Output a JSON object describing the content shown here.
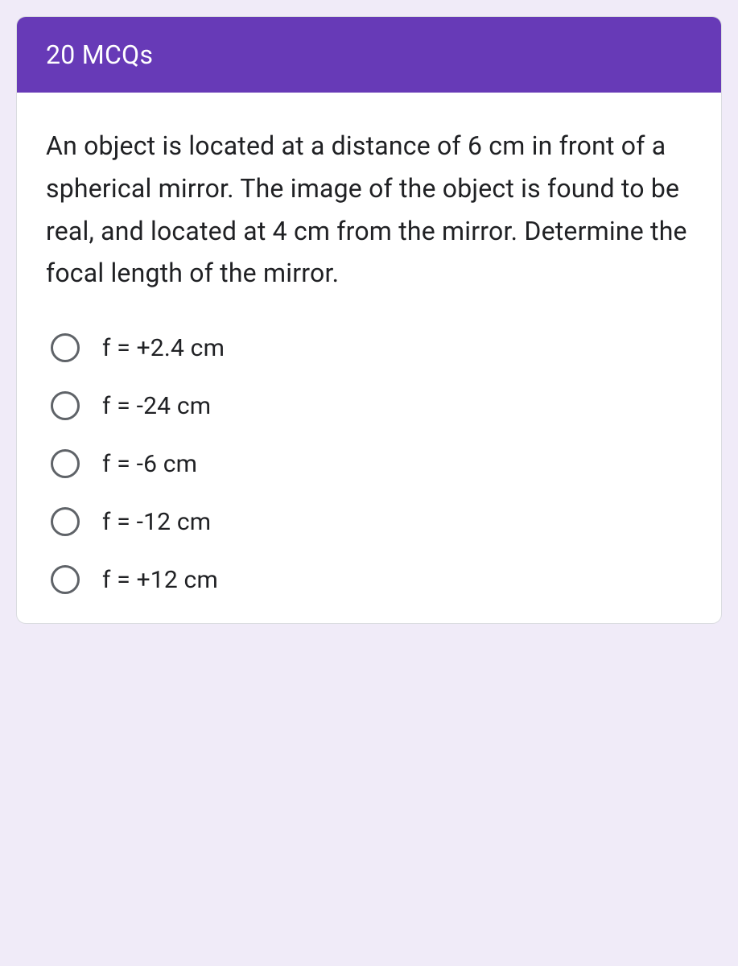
{
  "header": {
    "title": "20 MCQs"
  },
  "question": {
    "text": "An object is located at a distance of 6 cm in front of a spherical mirror. The image of the object is found to be real, and located at 4 cm from the mirror. Determine the focal length of the mirror."
  },
  "options": [
    {
      "label": "f = +2.4 cm"
    },
    {
      "label": "f = -24 cm"
    },
    {
      "label": "f = -6 cm"
    },
    {
      "label": "f = -12 cm"
    },
    {
      "label": "f = +12 cm"
    }
  ],
  "colors": {
    "header_bg": "#673ab7",
    "header_text": "#ffffff",
    "page_bg": "#f0ebf8",
    "card_bg": "#ffffff",
    "card_border": "#dadce0",
    "text": "#202124",
    "radio_border": "#5f6368"
  }
}
